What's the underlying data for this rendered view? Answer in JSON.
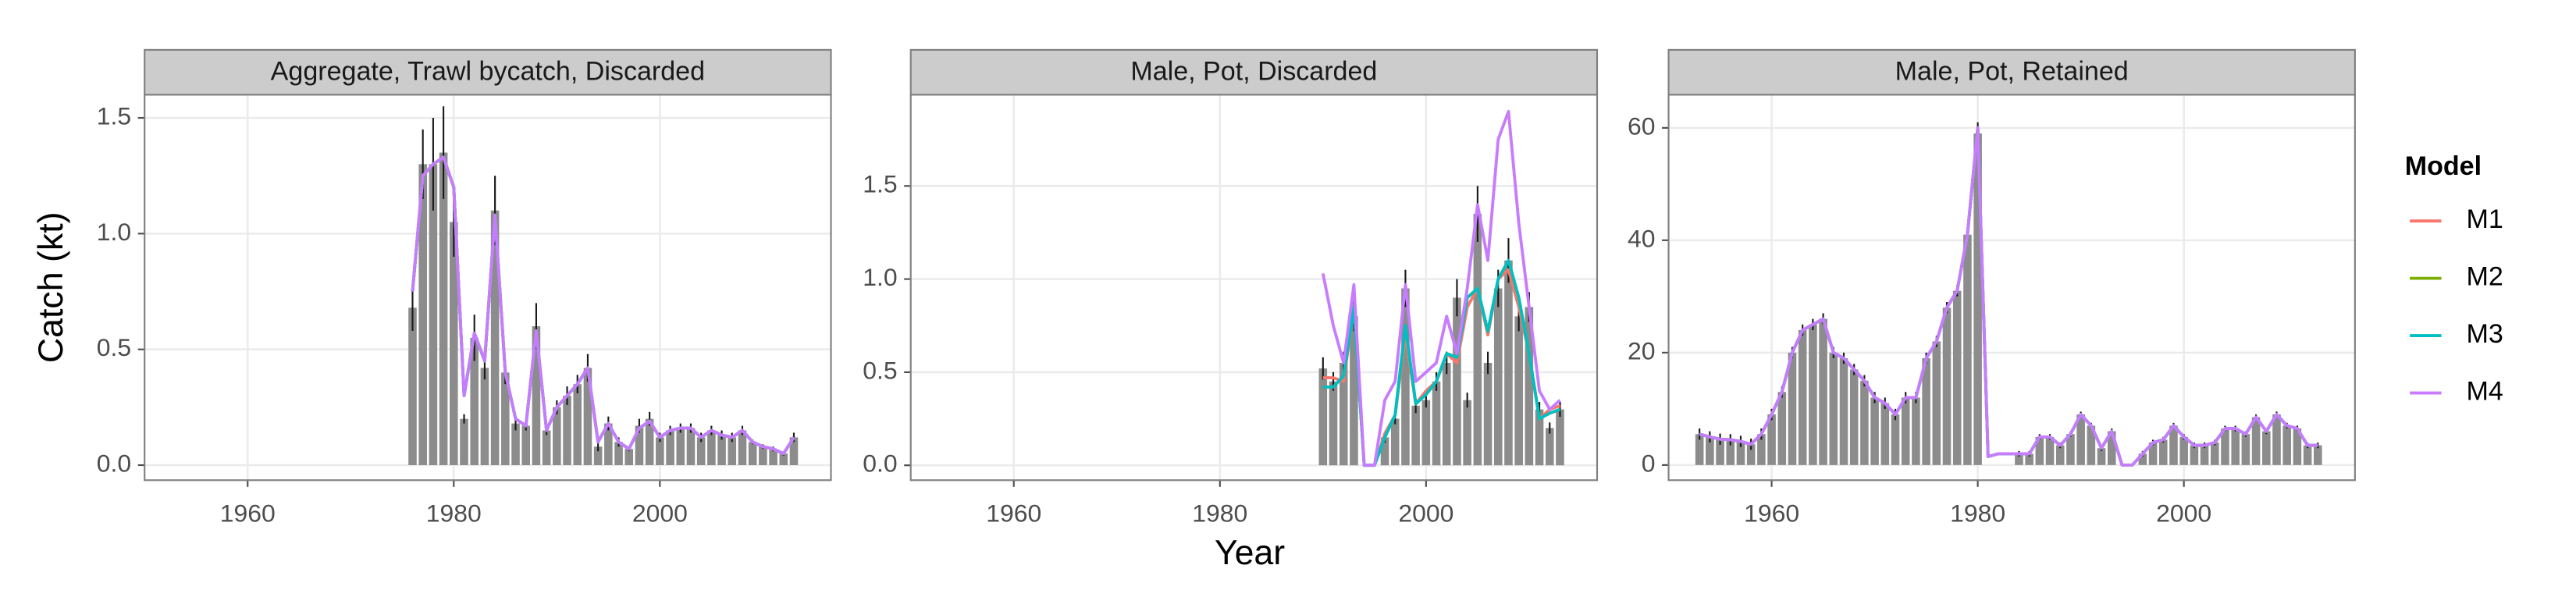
{
  "xlabel": "Year",
  "ylabel": "Catch (kt)",
  "legend_title": "Model",
  "chart_data": [
    {
      "type": "bar",
      "title": "Aggregate, Trawl bycatch, Discarded",
      "bar_color": "#8c8c8c",
      "error_color": "#1a1a1a",
      "grid": true,
      "xlim": [
        1950,
        2016.6
      ],
      "xticks": [
        1960,
        1980,
        2000
      ],
      "ylim": [
        -0.065,
        1.6
      ],
      "yticks": [
        {
          "value": 0,
          "label": "0.0"
        },
        0.5,
        {
          "value": 1,
          "label": "1.0"
        },
        1.5
      ],
      "x": [
        1976,
        1977,
        1978,
        1979,
        1980,
        1981,
        1982,
        1983,
        1984,
        1985,
        1986,
        1987,
        1988,
        1989,
        1990,
        1991,
        1992,
        1993,
        1994,
        1995,
        1996,
        1997,
        1998,
        1999,
        2000,
        2001,
        2002,
        2003,
        2004,
        2005,
        2006,
        2007,
        2008,
        2009,
        2010,
        2011,
        2012,
        2013
      ],
      "values": [
        0.68,
        1.3,
        1.3,
        1.35,
        1.05,
        0.2,
        0.55,
        0.42,
        1.1,
        0.4,
        0.18,
        0.17,
        0.6,
        0.15,
        0.25,
        0.3,
        0.35,
        0.42,
        0.08,
        0.18,
        0.1,
        0.07,
        0.17,
        0.2,
        0.12,
        0.15,
        0.16,
        0.16,
        0.12,
        0.15,
        0.13,
        0.12,
        0.15,
        0.1,
        0.08,
        0.07,
        0.05,
        0.12
      ],
      "errors": [
        0.1,
        0.15,
        0.2,
        0.2,
        0.15,
        0.02,
        0.1,
        0.05,
        0.15,
        0.05,
        0.03,
        0.02,
        0.1,
        0.02,
        0.03,
        0.04,
        0.04,
        0.06,
        0.02,
        0.03,
        0.02,
        0.01,
        0.03,
        0.03,
        0.02,
        0.02,
        0.02,
        0.02,
        0.02,
        0.02,
        0.02,
        0.02,
        0.02,
        0.01,
        0.01,
        0.01,
        0.01,
        0.02
      ],
      "series": [
        {
          "name": "M1",
          "color": "#F8766D",
          "values": [
            0.75,
            1.25,
            1.3,
            1.33,
            1.2,
            0.3,
            0.57,
            0.45,
            1.08,
            0.4,
            0.2,
            0.17,
            0.58,
            0.15,
            0.25,
            0.3,
            0.35,
            0.42,
            0.1,
            0.18,
            0.1,
            0.07,
            0.16,
            0.19,
            0.12,
            0.15,
            0.16,
            0.16,
            0.12,
            0.15,
            0.13,
            0.12,
            0.15,
            0.1,
            0.08,
            0.07,
            0.05,
            0.12
          ]
        },
        {
          "name": "M2",
          "color": "#7CAE00",
          "values": [
            0.75,
            1.25,
            1.3,
            1.33,
            1.2,
            0.3,
            0.57,
            0.45,
            1.08,
            0.4,
            0.2,
            0.17,
            0.58,
            0.15,
            0.25,
            0.3,
            0.35,
            0.42,
            0.1,
            0.18,
            0.1,
            0.07,
            0.16,
            0.19,
            0.12,
            0.15,
            0.16,
            0.16,
            0.12,
            0.15,
            0.13,
            0.12,
            0.15,
            0.1,
            0.08,
            0.07,
            0.05,
            0.12
          ]
        },
        {
          "name": "M3",
          "color": "#00BFC4",
          "values": [
            0.75,
            1.25,
            1.3,
            1.33,
            1.2,
            0.3,
            0.57,
            0.45,
            1.08,
            0.4,
            0.2,
            0.17,
            0.58,
            0.15,
            0.25,
            0.3,
            0.35,
            0.42,
            0.1,
            0.18,
            0.1,
            0.07,
            0.16,
            0.19,
            0.12,
            0.15,
            0.16,
            0.16,
            0.12,
            0.15,
            0.13,
            0.12,
            0.15,
            0.1,
            0.08,
            0.07,
            0.05,
            0.12
          ]
        },
        {
          "name": "M4",
          "color": "#C77CFF",
          "values": [
            0.75,
            1.25,
            1.3,
            1.33,
            1.2,
            0.3,
            0.57,
            0.45,
            1.08,
            0.4,
            0.2,
            0.17,
            0.58,
            0.15,
            0.25,
            0.3,
            0.35,
            0.42,
            0.1,
            0.18,
            0.1,
            0.07,
            0.16,
            0.19,
            0.12,
            0.15,
            0.16,
            0.16,
            0.12,
            0.15,
            0.13,
            0.12,
            0.15,
            0.1,
            0.08,
            0.07,
            0.05,
            0.12
          ]
        }
      ]
    },
    {
      "type": "bar",
      "title": "Male, Pot, Discarded",
      "bar_color": "#8c8c8c",
      "error_color": "#1a1a1a",
      "grid": true,
      "xlim": [
        1950,
        2016.6
      ],
      "xticks": [
        1960,
        1980,
        2000
      ],
      "ylim": [
        -0.08,
        1.99
      ],
      "yticks": [
        {
          "value": 0,
          "label": "0.0"
        },
        0.5,
        {
          "value": 1,
          "label": "1.0"
        },
        1.5
      ],
      "x": [
        1990,
        1991,
        1992,
        1993,
        1994,
        1995,
        1996,
        1997,
        1998,
        1999,
        2000,
        2001,
        2002,
        2003,
        2004,
        2005,
        2006,
        2007,
        2008,
        2009,
        2010,
        2011,
        2012,
        2013
      ],
      "values": [
        0.52,
        0.45,
        0.55,
        0.8,
        null,
        null,
        0.15,
        0.25,
        0.95,
        0.32,
        0.35,
        0.45,
        0.55,
        0.9,
        0.35,
        1.35,
        0.55,
        0.95,
        1.1,
        0.8,
        0.85,
        0.3,
        0.2,
        0.3
      ],
      "errors": [
        0.06,
        0.05,
        0.06,
        0.08,
        null,
        null,
        0.03,
        0.03,
        0.1,
        0.04,
        0.04,
        0.05,
        0.06,
        0.1,
        0.04,
        0.15,
        0.06,
        0.1,
        0.12,
        0.08,
        0.08,
        0.04,
        0.03,
        0.04
      ],
      "series": [
        {
          "name": "M1",
          "color": "#F8766D",
          "values": [
            0.47,
            0.47,
            0.45,
            0.85,
            0,
            0,
            0.17,
            0.27,
            0.7,
            0.33,
            0.4,
            0.45,
            0.6,
            0.55,
            0.85,
            0.95,
            0.7,
            1.0,
            1.05,
            0.85,
            0.6,
            0.25,
            0.3,
            0.32
          ]
        },
        {
          "name": "M2",
          "color": "#7CAE00",
          "values": [
            0.42,
            0.42,
            0.48,
            0.85,
            0,
            0,
            0.15,
            0.27,
            0.75,
            0.33,
            0.38,
            0.45,
            0.6,
            0.58,
            0.9,
            0.95,
            0.72,
            1.0,
            1.1,
            0.9,
            0.6,
            0.25,
            0.28,
            0.3
          ]
        },
        {
          "name": "M3",
          "color": "#00BFC4",
          "values": [
            0.42,
            0.42,
            0.48,
            0.85,
            0,
            0,
            0.15,
            0.27,
            0.75,
            0.33,
            0.38,
            0.45,
            0.6,
            0.58,
            0.9,
            0.95,
            0.72,
            1.0,
            1.1,
            0.9,
            0.6,
            0.25,
            0.28,
            0.3
          ]
        },
        {
          "name": "M4",
          "color": "#C77CFF",
          "values": [
            1.03,
            0.75,
            0.55,
            0.97,
            0,
            0,
            0.35,
            0.45,
            0.97,
            0.45,
            0.5,
            0.55,
            0.8,
            0.6,
            0.95,
            1.4,
            1.1,
            1.75,
            1.9,
            1.3,
            0.85,
            0.4,
            0.3,
            0.35
          ]
        }
      ]
    },
    {
      "type": "bar",
      "title": "Male, Pot, Retained",
      "bar_color": "#8c8c8c",
      "error_color": "#1a1a1a",
      "grid": true,
      "xlim": [
        1950,
        2016.6
      ],
      "xticks": [
        1960,
        1980,
        2000
      ],
      "ylim": [
        -2.7,
        65.9
      ],
      "yticks": [
        0,
        20,
        40,
        60
      ],
      "x": [
        1953,
        1954,
        1955,
        1956,
        1957,
        1958,
        1959,
        1960,
        1961,
        1962,
        1963,
        1964,
        1965,
        1966,
        1967,
        1968,
        1969,
        1970,
        1971,
        1972,
        1973,
        1974,
        1975,
        1976,
        1977,
        1978,
        1979,
        1980,
        1981,
        1982,
        1983,
        1984,
        1985,
        1986,
        1987,
        1988,
        1989,
        1990,
        1991,
        1992,
        1993,
        1994,
        1995,
        1996,
        1997,
        1998,
        1999,
        2000,
        2001,
        2002,
        2003,
        2004,
        2005,
        2006,
        2007,
        2008,
        2009,
        2010,
        2011,
        2012,
        2013
      ],
      "values": [
        5.5,
        5,
        4.6,
        4.5,
        4.2,
        3.7,
        5.5,
        9,
        13,
        20,
        24,
        25,
        26,
        20,
        19,
        17,
        15,
        12,
        11,
        9,
        12,
        12,
        19,
        22,
        28,
        31,
        41,
        59,
        null,
        null,
        null,
        2,
        2,
        5,
        5,
        3.5,
        5.5,
        9,
        7,
        3,
        6,
        null,
        null,
        2,
        4,
        4.5,
        7,
        5,
        3.5,
        3.5,
        4,
        6.5,
        6.5,
        5.5,
        8.5,
        6,
        9,
        7,
        6.5,
        3.5,
        3.5
      ],
      "errors": [
        1,
        1,
        1,
        1,
        1,
        1,
        1,
        1,
        1,
        1,
        1,
        1,
        1,
        1,
        1,
        1,
        1,
        1,
        1,
        1,
        1,
        1,
        1,
        1,
        1,
        1,
        1,
        2,
        null,
        null,
        null,
        0.5,
        0.5,
        0.5,
        0.5,
        0.5,
        0.5,
        0.5,
        0.5,
        0.5,
        0.5,
        null,
        null,
        0.5,
        0.5,
        0.5,
        0.5,
        0.5,
        0.5,
        0.5,
        0.5,
        0.5,
        0.5,
        0.5,
        0.5,
        0.5,
        0.5,
        0.5,
        0.5,
        0.5,
        0.5
      ],
      "series": [
        {
          "name": "M1",
          "color": "#F8766D",
          "values": [
            5.5,
            5,
            4.6,
            4.5,
            4.2,
            3.7,
            5.5,
            9,
            13,
            20,
            24,
            25,
            26,
            20,
            19,
            17,
            15,
            12,
            11,
            9,
            12,
            12,
            19,
            22,
            28,
            31,
            41,
            60,
            1.5,
            2,
            2,
            2,
            2,
            5,
            5,
            3.5,
            5.5,
            9,
            7,
            3,
            6,
            0,
            0,
            2,
            4,
            4.5,
            7,
            5,
            3.5,
            3.5,
            4,
            6.5,
            6.5,
            5.5,
            8.5,
            6,
            9,
            7,
            6.5,
            3.5,
            3.5
          ]
        },
        {
          "name": "M2",
          "color": "#7CAE00",
          "values": [
            5.5,
            5,
            4.6,
            4.5,
            4.2,
            3.7,
            5.5,
            9,
            13,
            20,
            24,
            25,
            26,
            20,
            19,
            17,
            15,
            12,
            11,
            9,
            12,
            12,
            19,
            22,
            28,
            31,
            41,
            60,
            1.5,
            2,
            2,
            2,
            2,
            5,
            5,
            3.5,
            5.5,
            9,
            7,
            3,
            6,
            0,
            0,
            2,
            4,
            4.5,
            7,
            5,
            3.5,
            3.5,
            4,
            6.5,
            6.5,
            5.5,
            8.5,
            6,
            9,
            7,
            6.5,
            3.5,
            3.5
          ]
        },
        {
          "name": "M3",
          "color": "#00BFC4",
          "values": [
            5.5,
            5,
            4.6,
            4.5,
            4.2,
            3.7,
            5.5,
            9,
            13,
            20,
            24,
            25,
            26,
            20,
            19,
            17,
            15,
            12,
            11,
            9,
            12,
            12,
            19,
            22,
            28,
            31,
            41,
            60,
            1.5,
            2,
            2,
            2,
            2,
            5,
            5,
            3.5,
            5.5,
            9,
            7,
            3,
            6,
            0,
            0,
            2,
            4,
            4.5,
            7,
            5,
            3.5,
            3.5,
            4,
            6.5,
            6.5,
            5.5,
            8.5,
            6,
            9,
            7,
            6.5,
            3.5,
            3.5
          ]
        },
        {
          "name": "M4",
          "color": "#C77CFF",
          "values": [
            5.5,
            5,
            4.6,
            4.5,
            4.2,
            3.7,
            5.5,
            9,
            13,
            20,
            24,
            25,
            26,
            20,
            19,
            17,
            15,
            12,
            11,
            9,
            12,
            12,
            19,
            22,
            28,
            31,
            41,
            60,
            1.5,
            2,
            2,
            2,
            2,
            5,
            5,
            3.5,
            5.5,
            9,
            7,
            3,
            6,
            0,
            0,
            2,
            4,
            4.5,
            7,
            5,
            3.5,
            3.5,
            4,
            6.5,
            6.5,
            5.5,
            8.5,
            6,
            9,
            7,
            6.5,
            3.5,
            3.5
          ]
        }
      ]
    }
  ]
}
